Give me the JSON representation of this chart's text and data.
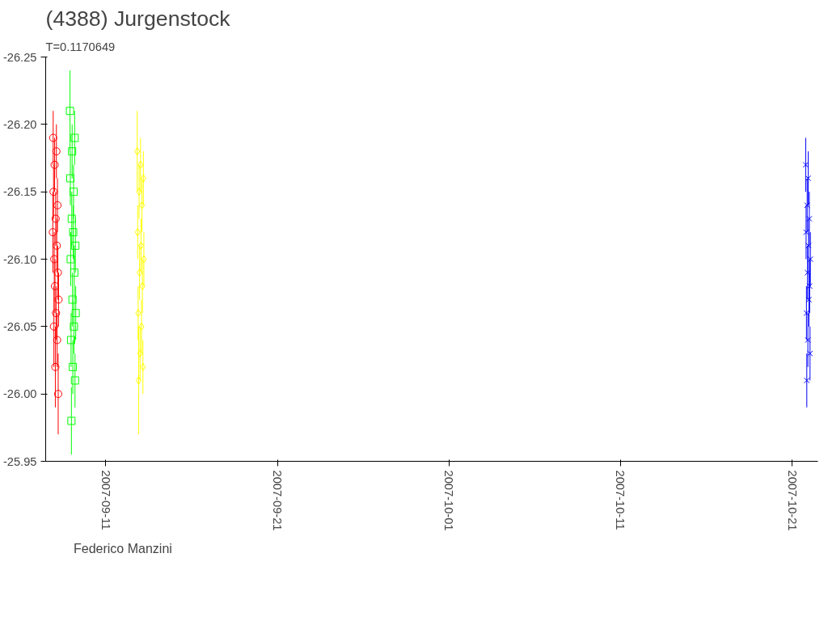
{
  "chart_data": {
    "type": "scatter",
    "title": "(4388) Jurgenstock",
    "subtitle": "T=0.1170649",
    "xlim": [
      "2007-09-07T12:00",
      "2007-10-22T12:00"
    ],
    "xticks": [
      "2007-09-11",
      "2007-09-21",
      "2007-10-01",
      "2007-10-11",
      "2007-10-21"
    ],
    "ylim": [
      -25.95,
      -26.25
    ],
    "yticks": [
      -26.25,
      {
        "value": -26.2,
        "label": "-26.20"
      },
      -26.15,
      {
        "value": -26.1,
        "label": "-26.10"
      },
      -26.05,
      {
        "value": -26.0,
        "label": "-26.00"
      },
      -25.95
    ],
    "grid": false,
    "legend": "bottom left",
    "series": [
      {
        "name": "Federico Manzini",
        "color": "#ff0000",
        "marker": "circle",
        "x": [
          "2007-09-07T22:00",
          "2007-09-07T22:30",
          "2007-09-07T23:00",
          "2007-09-07T23:30",
          "2007-09-08T00:00",
          "2007-09-08T00:30",
          "2007-09-08T01:00",
          "2007-09-08T01:30",
          "2007-09-08T02:00",
          "2007-09-08T02:30",
          "2007-09-08T03:00",
          "2007-09-08T03:30",
          "2007-09-08T04:00",
          "2007-09-08T04:30",
          "2007-09-08T05:00",
          "2007-09-08T05:30",
          "2007-09-08T06:00"
        ],
        "values": [
          -26.12,
          -26.19,
          -26.15,
          -26.05,
          -26.1,
          -26.17,
          -26.08,
          -26.02,
          -26.13,
          -26.06,
          -26.18,
          -26.11,
          -26.04,
          -26.14,
          -26.09,
          -26.0,
          -26.07
        ],
        "errors": [
          0.03,
          0.02,
          0.02,
          0.03,
          0.02,
          0.02,
          0.02,
          0.03,
          0.02,
          0.02,
          0.02,
          0.02,
          0.02,
          0.02,
          0.02,
          0.03,
          0.02
        ]
      },
      {
        "color": "#00ff00",
        "marker": "square",
        "x": [
          "2007-09-08T22:00",
          "2007-09-08T22:30",
          "2007-09-08T23:00",
          "2007-09-08T23:30",
          "2007-09-09T00:00",
          "2007-09-09T00:30",
          "2007-09-09T01:00",
          "2007-09-09T01:30",
          "2007-09-09T02:00",
          "2007-09-09T02:30",
          "2007-09-09T03:00",
          "2007-09-09T03:30",
          "2007-09-09T04:00",
          "2007-09-09T04:30",
          "2007-09-09T05:00",
          "2007-09-09T05:30",
          "2007-09-09T06:00"
        ],
        "values": [
          -26.21,
          -26.16,
          -26.1,
          -26.04,
          -25.98,
          -26.13,
          -26.18,
          -26.07,
          -26.02,
          -26.12,
          -26.15,
          -26.05,
          -26.09,
          -26.19,
          -26.01,
          -26.11,
          -26.06
        ],
        "errors": [
          0.03,
          0.02,
          0.02,
          0.02,
          0.025,
          0.02,
          0.02,
          0.02,
          0.02,
          0.02,
          0.02,
          0.02,
          0.02,
          0.02,
          0.02,
          0.02,
          0.02
        ]
      },
      {
        "color": "#ffff00",
        "marker": "diamond",
        "x": [
          "2007-09-12T20:00",
          "2007-09-12T20:40",
          "2007-09-12T21:20",
          "2007-09-12T22:00",
          "2007-09-12T22:40",
          "2007-09-12T23:20",
          "2007-09-13T00:00",
          "2007-09-13T00:40",
          "2007-09-13T01:20",
          "2007-09-13T02:00",
          "2007-09-13T02:40",
          "2007-09-13T03:20",
          "2007-09-13T04:00",
          "2007-09-13T04:40",
          "2007-09-13T05:20"
        ],
        "values": [
          -26.18,
          -26.12,
          -26.06,
          -26.01,
          -26.15,
          -26.09,
          -26.03,
          -26.17,
          -26.11,
          -26.05,
          -26.14,
          -26.08,
          -26.02,
          -26.16,
          -26.1
        ],
        "errors": [
          0.03,
          0.02,
          0.02,
          0.04,
          0.02,
          0.02,
          0.02,
          0.02,
          0.02,
          0.02,
          0.02,
          0.02,
          0.02,
          0.02,
          0.02
        ]
      },
      {
        "color": "#0000ff",
        "marker": "cross",
        "x": [
          "2007-10-21T19:00",
          "2007-10-21T19:30",
          "2007-10-21T20:00",
          "2007-10-21T20:30",
          "2007-10-21T21:00",
          "2007-10-21T21:30",
          "2007-10-21T22:00",
          "2007-10-21T22:30",
          "2007-10-21T23:00",
          "2007-10-21T23:30",
          "2007-10-22T00:00",
          "2007-10-22T00:30",
          "2007-10-22T01:00",
          "2007-10-22T01:30"
        ],
        "values": [
          -26.17,
          -26.12,
          -26.06,
          -26.01,
          -26.14,
          -26.09,
          -26.04,
          -26.16,
          -26.11,
          -26.07,
          -26.13,
          -26.08,
          -26.03,
          -26.1
        ],
        "errors": [
          0.02,
          0.02,
          0.02,
          0.02,
          0.02,
          0.02,
          0.02,
          0.02,
          0.02,
          0.02,
          0.02,
          0.02,
          0.02,
          0.02
        ]
      }
    ]
  }
}
